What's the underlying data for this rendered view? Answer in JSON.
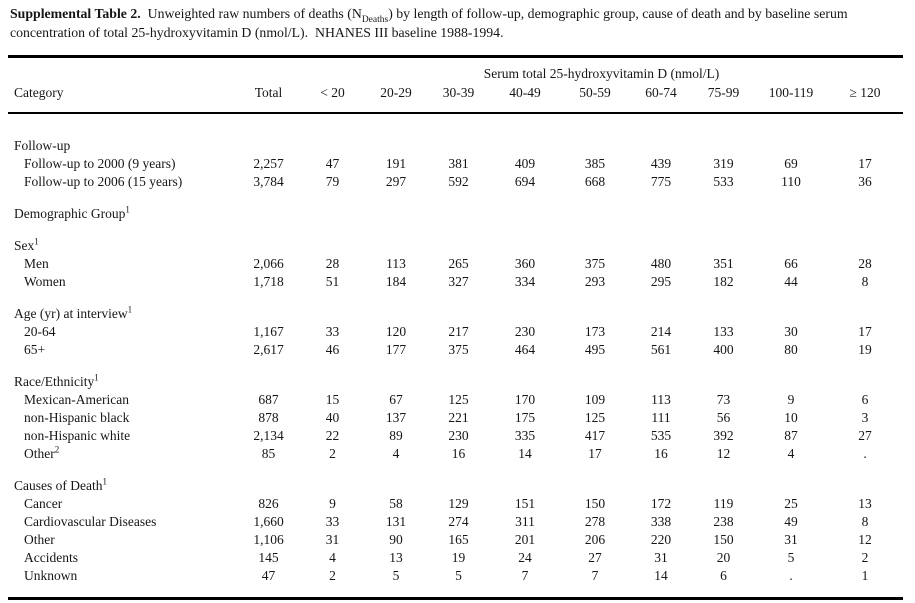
{
  "title": {
    "label": "Supplemental Table 2.",
    "text_before_sub": "  Unweighted raw numbers of deaths (N",
    "subscript": "Deaths",
    "text_after_sub": ") by length of follow-up, demographic group, cause of death and by baseline serum concentration of total 25-hydroxyvitamin D (nmol/L).  NHANES III baseline 1988-1994."
  },
  "colors": {
    "text": "#161616",
    "rule": "#000000",
    "background": "#ffffff"
  },
  "table": {
    "group_header": "Serum total 25-hydroxyvitamin D (nmol/L)",
    "columns": [
      "Category",
      "Total",
      "< 20",
      "20-29",
      "30-39",
      "40-49",
      "50-59",
      "60-74",
      "75-99",
      "100-119",
      "≥ 120"
    ],
    "missing_marker": ".",
    "rows": [
      {
        "kind": "section",
        "label": "Follow-up",
        "sup": "",
        "gap": false
      },
      {
        "kind": "data",
        "label": "Follow-up to 2000 (9 years)",
        "sup": "",
        "gap": false,
        "values": [
          "2,257",
          "47",
          "191",
          "381",
          "409",
          "385",
          "439",
          "319",
          "69",
          "17"
        ]
      },
      {
        "kind": "data",
        "label": "Follow-up to 2006 (15 years)",
        "sup": "",
        "gap": false,
        "values": [
          "3,784",
          "79",
          "297",
          "592",
          "694",
          "668",
          "775",
          "533",
          "110",
          "36"
        ]
      },
      {
        "kind": "section",
        "label": "Demographic Group",
        "sup": "1",
        "gap": true
      },
      {
        "kind": "section",
        "label": "Sex",
        "sup": "1",
        "gap": true
      },
      {
        "kind": "data",
        "label": "Men",
        "sup": "",
        "gap": false,
        "values": [
          "2,066",
          "28",
          "113",
          "265",
          "360",
          "375",
          "480",
          "351",
          "66",
          "28"
        ]
      },
      {
        "kind": "data",
        "label": "Women",
        "sup": "",
        "gap": false,
        "values": [
          "1,718",
          "51",
          "184",
          "327",
          "334",
          "293",
          "295",
          "182",
          "44",
          "8"
        ]
      },
      {
        "kind": "section",
        "label": "Age (yr) at interview",
        "sup": "1",
        "gap": true
      },
      {
        "kind": "data",
        "label": "20-64",
        "sup": "",
        "gap": false,
        "values": [
          "1,167",
          "33",
          "120",
          "217",
          "230",
          "173",
          "214",
          "133",
          "30",
          "17"
        ]
      },
      {
        "kind": "data",
        "label": "65+",
        "sup": "",
        "gap": false,
        "values": [
          "2,617",
          "46",
          "177",
          "375",
          "464",
          "495",
          "561",
          "400",
          "80",
          "19"
        ]
      },
      {
        "kind": "section",
        "label": "Race/Ethnicity",
        "sup": "1",
        "gap": true
      },
      {
        "kind": "data",
        "label": "Mexican-American",
        "sup": "",
        "gap": false,
        "values": [
          "687",
          "15",
          "67",
          "125",
          "170",
          "109",
          "113",
          "73",
          "9",
          "6"
        ]
      },
      {
        "kind": "data",
        "label": "non-Hispanic black",
        "sup": "",
        "gap": false,
        "values": [
          "878",
          "40",
          "137",
          "221",
          "175",
          "125",
          "111",
          "56",
          "10",
          "3"
        ]
      },
      {
        "kind": "data",
        "label": "non-Hispanic white",
        "sup": "",
        "gap": false,
        "values": [
          "2,134",
          "22",
          "89",
          "230",
          "335",
          "417",
          "535",
          "392",
          "87",
          "27"
        ]
      },
      {
        "kind": "data",
        "label": "Other",
        "sup": "2",
        "gap": false,
        "values": [
          "85",
          "2",
          "4",
          "16",
          "14",
          "17",
          "16",
          "12",
          "4",
          "."
        ]
      },
      {
        "kind": "section",
        "label": "Causes of Death",
        "sup": "1",
        "gap": true
      },
      {
        "kind": "data",
        "label": "Cancer",
        "sup": "",
        "gap": false,
        "values": [
          "826",
          "9",
          "58",
          "129",
          "151",
          "150",
          "172",
          "119",
          "25",
          "13"
        ]
      },
      {
        "kind": "data",
        "label": "Cardiovascular Diseases",
        "sup": "",
        "gap": false,
        "values": [
          "1,660",
          "33",
          "131",
          "274",
          "311",
          "278",
          "338",
          "238",
          "49",
          "8"
        ]
      },
      {
        "kind": "data",
        "label": "Other",
        "sup": "",
        "gap": false,
        "values": [
          "1,106",
          "31",
          "90",
          "165",
          "201",
          "206",
          "220",
          "150",
          "31",
          "12"
        ]
      },
      {
        "kind": "data",
        "label": "Accidents",
        "sup": "",
        "gap": false,
        "values": [
          "145",
          "4",
          "13",
          "19",
          "24",
          "27",
          "31",
          "20",
          "5",
          "2"
        ]
      },
      {
        "kind": "data",
        "label": "Unknown",
        "sup": "",
        "gap": false,
        "values": [
          "47",
          "2",
          "5",
          "5",
          "7",
          "7",
          "14",
          "6",
          ".",
          "1"
        ]
      }
    ]
  }
}
